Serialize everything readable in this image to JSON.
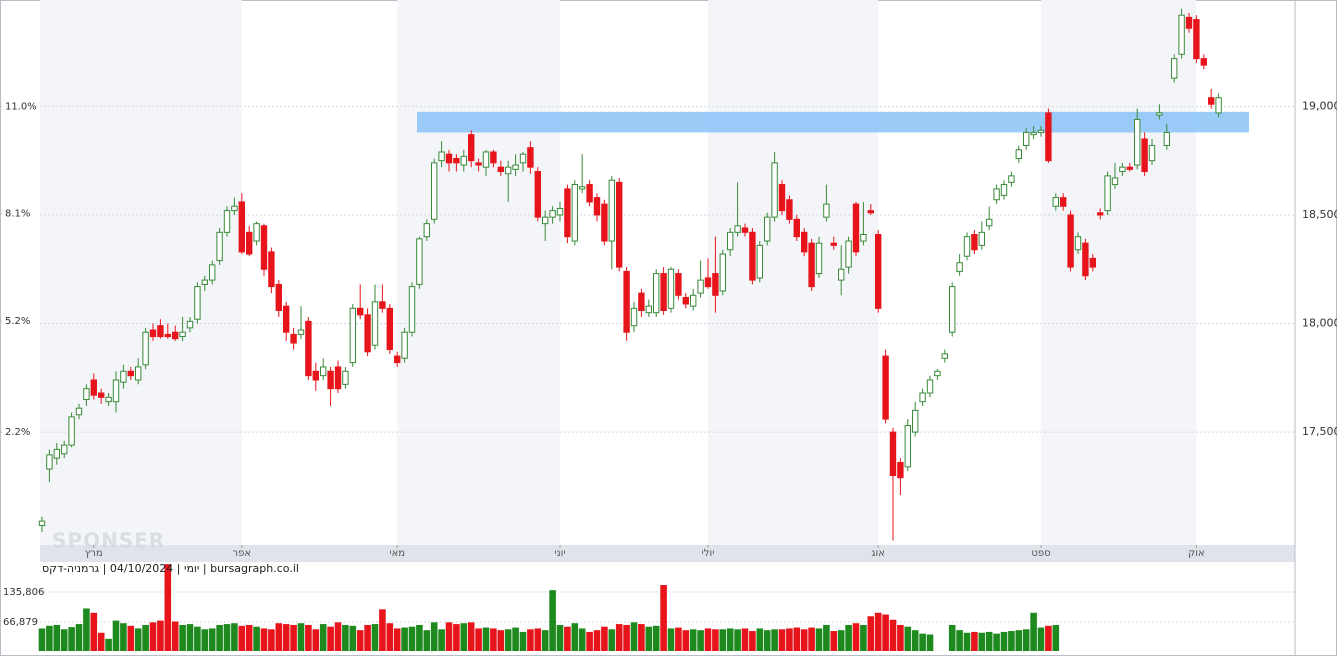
{
  "chart_data": {
    "type": "candlestick",
    "source_label": "יומי | 04/10/2024 | גרמניה-דקס | bursagraph.co.il",
    "watermark": "SPONSER",
    "ylim": [
      16980,
      19490
    ],
    "yticks": [
      {
        "value": 17500,
        "label": "17,500"
      },
      {
        "value": 18000,
        "label": "18,000"
      },
      {
        "value": 18500,
        "label": "18,500"
      },
      {
        "value": 19000,
        "label": "19,000"
      }
    ],
    "y2lim": [
      -0.85,
      13.87
    ],
    "y2ticks": [
      {
        "value": 2.2,
        "label": "2.2%"
      },
      {
        "value": 5.2,
        "label": "5.2%"
      },
      {
        "value": 8.1,
        "label": "8.1%"
      },
      {
        "value": 11.0,
        "label": "11.0%"
      }
    ],
    "xticks": [
      {
        "value": 7,
        "label": "מרץ"
      },
      {
        "value": 27,
        "label": "אפר"
      },
      {
        "value": 48,
        "label": "מאי"
      },
      {
        "value": 70,
        "label": "יוני"
      },
      {
        "value": 90,
        "label": "יולי"
      },
      {
        "value": 113,
        "label": "אוג"
      },
      {
        "value": 135,
        "label": "ספט"
      },
      {
        "value": 156,
        "label": "אוק"
      }
    ],
    "grid": true,
    "highlight_zone": [
      18880,
      18975
    ],
    "up_color": "#3a8a3a",
    "down_color": "#e8141c",
    "candles": [
      [
        17070,
        17110,
        17040,
        17090
      ],
      [
        17330,
        17420,
        17270,
        17395
      ],
      [
        17380,
        17450,
        17350,
        17420
      ],
      [
        17400,
        17460,
        17380,
        17440
      ],
      [
        17440,
        17590,
        17430,
        17570
      ],
      [
        17580,
        17630,
        17560,
        17610
      ],
      [
        17650,
        17720,
        17620,
        17700
      ],
      [
        17740,
        17770,
        17650,
        17670
      ],
      [
        17680,
        17700,
        17630,
        17660
      ],
      [
        17640,
        17680,
        17620,
        17660
      ],
      [
        17640,
        17780,
        17590,
        17740
      ],
      [
        17730,
        17810,
        17700,
        17780
      ],
      [
        17780,
        17800,
        17740,
        17760
      ],
      [
        17740,
        17840,
        17720,
        17800
      ],
      [
        17810,
        17980,
        17790,
        17960
      ],
      [
        17970,
        18000,
        17920,
        17940
      ],
      [
        17990,
        18020,
        17930,
        17940
      ],
      [
        17950,
        18000,
        17930,
        17940
      ],
      [
        17960,
        17990,
        17920,
        17930
      ],
      [
        17940,
        18030,
        17920,
        17960
      ],
      [
        17980,
        18030,
        17960,
        18010
      ],
      [
        18020,
        18190,
        18000,
        18170
      ],
      [
        18180,
        18220,
        18150,
        18200
      ],
      [
        18200,
        18290,
        18180,
        18270
      ],
      [
        18290,
        18440,
        18270,
        18420
      ],
      [
        18420,
        18540,
        18400,
        18520
      ],
      [
        18520,
        18580,
        18500,
        18540
      ],
      [
        18560,
        18600,
        18320,
        18330
      ],
      [
        18420,
        18450,
        18310,
        18320
      ],
      [
        18380,
        18470,
        18360,
        18460
      ],
      [
        18450,
        18460,
        18220,
        18250
      ],
      [
        18330,
        18350,
        18140,
        18170
      ],
      [
        18180,
        18200,
        18030,
        18060
      ],
      [
        18080,
        18100,
        17920,
        17960
      ],
      [
        17950,
        17980,
        17880,
        17910
      ],
      [
        17950,
        18080,
        17930,
        17970
      ],
      [
        18010,
        18030,
        17740,
        17760
      ],
      [
        17780,
        17820,
        17690,
        17740
      ],
      [
        17760,
        17840,
        17740,
        17800
      ],
      [
        17780,
        17800,
        17620,
        17700
      ],
      [
        17800,
        17830,
        17680,
        17700
      ],
      [
        17720,
        17800,
        17700,
        17780
      ],
      [
        17820,
        18090,
        17800,
        18070
      ],
      [
        18070,
        18180,
        18020,
        18040
      ],
      [
        18040,
        18070,
        17850,
        17870
      ],
      [
        17900,
        18180,
        17880,
        18100
      ],
      [
        18100,
        18180,
        18050,
        18070
      ],
      [
        18070,
        18090,
        17860,
        17880
      ],
      [
        17850,
        17870,
        17800,
        17820
      ],
      [
        17840,
        17980,
        17820,
        17960
      ],
      [
        17960,
        18190,
        17940,
        18170
      ],
      [
        18180,
        18400,
        18160,
        18390
      ],
      [
        18400,
        18480,
        18380,
        18460
      ],
      [
        18480,
        18760,
        18460,
        18740
      ],
      [
        18750,
        18840,
        18720,
        18790
      ],
      [
        18780,
        18800,
        18700,
        18740
      ],
      [
        18760,
        18780,
        18700,
        18740
      ],
      [
        18730,
        18800,
        18700,
        18770
      ],
      [
        18870,
        18890,
        18720,
        18750
      ],
      [
        18740,
        18760,
        18700,
        18730
      ],
      [
        18720,
        18800,
        18680,
        18790
      ],
      [
        18790,
        18800,
        18720,
        18740
      ],
      [
        18720,
        18750,
        18680,
        18700
      ],
      [
        18690,
        18750,
        18560,
        18720
      ],
      [
        18710,
        18780,
        18680,
        18730
      ],
      [
        18740,
        18790,
        18700,
        18780
      ],
      [
        18810,
        18840,
        18690,
        18720
      ],
      [
        18700,
        18720,
        18470,
        18490
      ],
      [
        18460,
        18520,
        18380,
        18490
      ],
      [
        18490,
        18540,
        18460,
        18520
      ],
      [
        18500,
        18560,
        18470,
        18530
      ],
      [
        18620,
        18640,
        18370,
        18400
      ],
      [
        18380,
        18660,
        18360,
        18640
      ],
      [
        18620,
        18780,
        18600,
        18630
      ],
      [
        18640,
        18660,
        18540,
        18560
      ],
      [
        18580,
        18600,
        18470,
        18500
      ],
      [
        18550,
        18570,
        18360,
        18380
      ],
      [
        18380,
        18680,
        18250,
        18660
      ],
      [
        18650,
        18670,
        18240,
        18260
      ],
      [
        18240,
        18260,
        17920,
        17960
      ],
      [
        17990,
        18100,
        17960,
        18070
      ],
      [
        18140,
        18160,
        18030,
        18060
      ],
      [
        18050,
        18110,
        18030,
        18080
      ],
      [
        18050,
        18250,
        18030,
        18230
      ],
      [
        18230,
        18260,
        18040,
        18060
      ],
      [
        18070,
        18260,
        18050,
        18250
      ],
      [
        18230,
        18250,
        18110,
        18130
      ],
      [
        18120,
        18140,
        18070,
        18090
      ],
      [
        18080,
        18160,
        18060,
        18130
      ],
      [
        18140,
        18290,
        18120,
        18200
      ],
      [
        18210,
        18300,
        18160,
        18170
      ],
      [
        18230,
        18400,
        18050,
        18130
      ],
      [
        18150,
        18340,
        18130,
        18320
      ],
      [
        18340,
        18440,
        18310,
        18420
      ],
      [
        18420,
        18650,
        18400,
        18450
      ],
      [
        18440,
        18460,
        18400,
        18420
      ],
      [
        18420,
        18440,
        18180,
        18200
      ],
      [
        18210,
        18380,
        18190,
        18360
      ],
      [
        18380,
        18510,
        18360,
        18490
      ],
      [
        18490,
        18790,
        18470,
        18740
      ],
      [
        18640,
        18660,
        18500,
        18520
      ],
      [
        18570,
        18590,
        18460,
        18480
      ],
      [
        18480,
        18500,
        18380,
        18400
      ],
      [
        18420,
        18440,
        18310,
        18330
      ],
      [
        18370,
        18390,
        18150,
        18170
      ],
      [
        18230,
        18400,
        18210,
        18370
      ],
      [
        18490,
        18640,
        18470,
        18550
      ],
      [
        18370,
        18400,
        18340,
        18360
      ],
      [
        18200,
        18360,
        18130,
        18250
      ],
      [
        18260,
        18400,
        18230,
        18380
      ],
      [
        18550,
        18560,
        18310,
        18330
      ],
      [
        18380,
        18560,
        18360,
        18410
      ],
      [
        18520,
        18550,
        18500,
        18510
      ],
      [
        18410,
        18430,
        18050,
        18070
      ],
      [
        17850,
        17880,
        17540,
        17560
      ],
      [
        17500,
        17520,
        17000,
        17300
      ],
      [
        17360,
        17380,
        17210,
        17290
      ],
      [
        17340,
        17560,
        17320,
        17530
      ],
      [
        17500,
        17640,
        17480,
        17600
      ],
      [
        17640,
        17700,
        17620,
        17680
      ],
      [
        17680,
        17760,
        17660,
        17740
      ],
      [
        17760,
        17790,
        17740,
        17780
      ],
      [
        17840,
        17880,
        17820,
        17860
      ],
      [
        17960,
        18190,
        17940,
        18170
      ],
      [
        18240,
        18320,
        18220,
        18280
      ],
      [
        18310,
        18420,
        18290,
        18400
      ],
      [
        18410,
        18430,
        18320,
        18340
      ],
      [
        18360,
        18470,
        18340,
        18420
      ],
      [
        18450,
        18540,
        18430,
        18480
      ],
      [
        18570,
        18640,
        18550,
        18620
      ],
      [
        18590,
        18660,
        18570,
        18640
      ],
      [
        18650,
        18700,
        18630,
        18680
      ],
      [
        18760,
        18820,
        18740,
        18800
      ],
      [
        18820,
        18900,
        18800,
        18880
      ],
      [
        18870,
        18910,
        18850,
        18880
      ],
      [
        18880,
        18910,
        18860,
        18890
      ],
      [
        18970,
        18990,
        18740,
        18750
      ],
      [
        18540,
        18600,
        18520,
        18580
      ],
      [
        18580,
        18600,
        18520,
        18540
      ],
      [
        18500,
        18520,
        18240,
        18260
      ],
      [
        18340,
        18420,
        18320,
        18400
      ],
      [
        18370,
        18390,
        18200,
        18220
      ],
      [
        18300,
        18320,
        18240,
        18260
      ],
      [
        18510,
        18530,
        18480,
        18500
      ],
      [
        18520,
        18700,
        18500,
        18680
      ],
      [
        18640,
        18740,
        18620,
        18670
      ],
      [
        18700,
        18740,
        18680,
        18720
      ],
      [
        18720,
        18740,
        18700,
        18710
      ],
      [
        18730,
        18990,
        18710,
        18940
      ],
      [
        18850,
        18880,
        18680,
        18700
      ],
      [
        18750,
        18850,
        18730,
        18820
      ],
      [
        18960,
        19010,
        18940,
        18970
      ],
      [
        18820,
        18920,
        18800,
        18880
      ],
      [
        19130,
        19240,
        19110,
        19220
      ],
      [
        19240,
        19450,
        19220,
        19420
      ],
      [
        19410,
        19430,
        19340,
        19360
      ],
      [
        19400,
        19420,
        19200,
        19220
      ],
      [
        19220,
        19240,
        19170,
        19190
      ],
      [
        19040,
        19080,
        18990,
        19010
      ],
      [
        18970,
        19060,
        18950,
        19040
      ]
    ],
    "volume": {
      "ylim": [
        0,
        205000
      ],
      "yticks": [
        {
          "value": 66879,
          "label": "66,879"
        },
        {
          "value": 135806,
          "label": "135,806"
        }
      ],
      "values": [
        52000,
        58000,
        60000,
        50000,
        55000,
        62000,
        98000,
        88000,
        42000,
        28000,
        70000,
        64000,
        58000,
        52000,
        60000,
        66000,
        70000,
        200000,
        68000,
        60000,
        62000,
        56000,
        50000,
        52000,
        60000,
        62000,
        64000,
        58000,
        60000,
        56000,
        52000,
        50000,
        64000,
        62000,
        60000,
        64000,
        60000,
        50000,
        62000,
        56000,
        66000,
        60000,
        58000,
        48000,
        60000,
        62000,
        96000,
        64000,
        52000,
        54000,
        56000,
        60000,
        48000,
        66000,
        50000,
        66000,
        62000,
        64000,
        66000,
        52000,
        54000,
        52000,
        48000,
        50000,
        54000,
        44000,
        50000,
        52000,
        48000,
        140000,
        60000,
        56000,
        64000,
        52000,
        44000,
        48000,
        56000,
        50000,
        62000,
        60000,
        66000,
        62000,
        56000,
        58000,
        152000,
        52000,
        54000,
        48000,
        50000,
        48000,
        52000,
        50000,
        50000,
        52000,
        50000,
        52000,
        46000,
        52000,
        48000,
        50000,
        50000,
        52000,
        54000,
        50000,
        54000,
        52000,
        60000,
        46000,
        48000,
        60000,
        64000,
        60000,
        80000,
        88000,
        84000,
        72000,
        60000,
        56000,
        48000,
        40000,
        38000,
        null,
        null,
        60000,
        48000,
        42000,
        44000,
        42000,
        44000,
        40000,
        44000,
        46000,
        48000,
        50000,
        88000,
        54000,
        58000,
        60000,
        null,
        null,
        null,
        null,
        null,
        null,
        null,
        null,
        null,
        null,
        null,
        null,
        null,
        null,
        null,
        null,
        null,
        null,
        null,
        null,
        null,
        null
      ]
    }
  }
}
